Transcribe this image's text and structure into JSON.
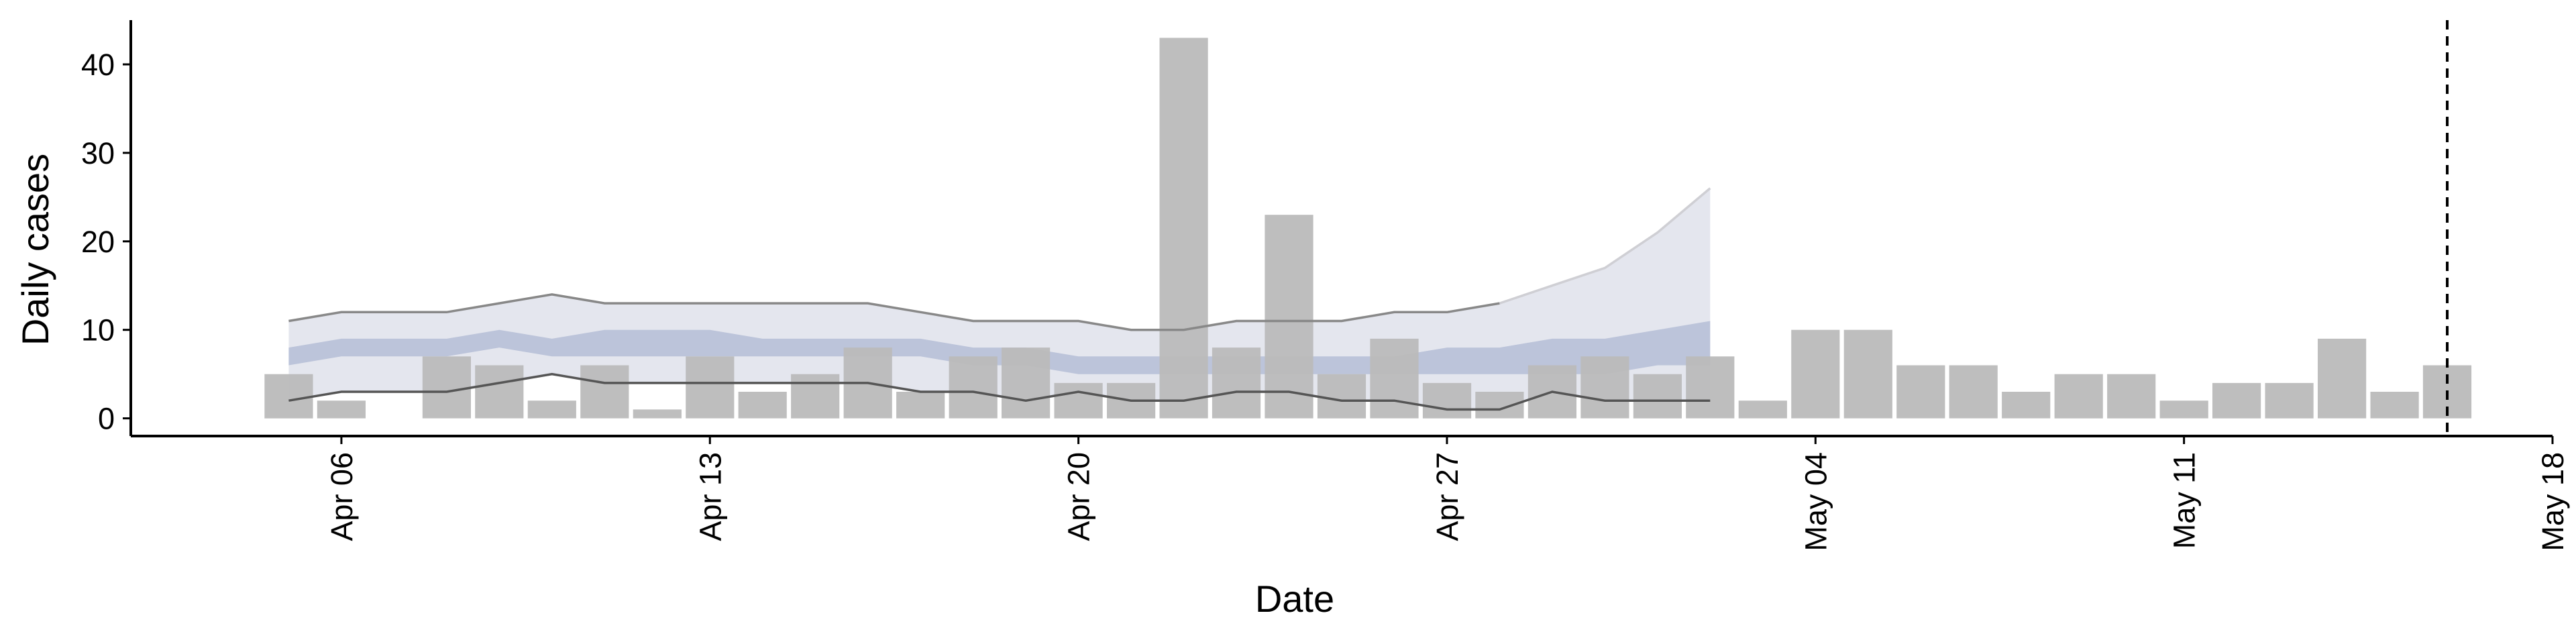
{
  "chart_data": {
    "type": "bar",
    "title": "",
    "xlabel": "Date",
    "ylabel": "Daily cases",
    "ylim": [
      -2,
      45
    ],
    "yticks": [
      0,
      10,
      20,
      30,
      40
    ],
    "xlim": [
      "2020-04-02",
      "2020-05-18"
    ],
    "xticks": [
      {
        "date": "2020-04-06",
        "label": "Apr 06"
      },
      {
        "date": "2020-04-13",
        "label": "Apr 13"
      },
      {
        "date": "2020-04-20",
        "label": "Apr 20"
      },
      {
        "date": "2020-04-27",
        "label": "Apr 27"
      },
      {
        "date": "2020-05-04",
        "label": "May 04"
      },
      {
        "date": "2020-05-11",
        "label": "May 11"
      },
      {
        "date": "2020-05-18",
        "label": "May 18"
      }
    ],
    "grid": false,
    "legend": "none",
    "bars": {
      "color": "#bababa",
      "dates": [
        "2020-04-05",
        "2020-04-06",
        "2020-04-07",
        "2020-04-08",
        "2020-04-09",
        "2020-04-10",
        "2020-04-11",
        "2020-04-12",
        "2020-04-13",
        "2020-04-14",
        "2020-04-15",
        "2020-04-16",
        "2020-04-17",
        "2020-04-18",
        "2020-04-19",
        "2020-04-20",
        "2020-04-21",
        "2020-04-22",
        "2020-04-23",
        "2020-04-24",
        "2020-04-25",
        "2020-04-26",
        "2020-04-27",
        "2020-04-28",
        "2020-04-29",
        "2020-04-30",
        "2020-05-01",
        "2020-05-02",
        "2020-05-03",
        "2020-05-04",
        "2020-05-05",
        "2020-05-06",
        "2020-05-07",
        "2020-05-08",
        "2020-05-09",
        "2020-05-10",
        "2020-05-11",
        "2020-05-12",
        "2020-05-13",
        "2020-05-14",
        "2020-05-15",
        "2020-05-16",
        "2020-05-17"
      ],
      "values": [
        5,
        2,
        0,
        7,
        6,
        2,
        6,
        1,
        7,
        3,
        5,
        8,
        3,
        7,
        8,
        4,
        4,
        43,
        8,
        23,
        5,
        9,
        4,
        3,
        6,
        7,
        5,
        7,
        2,
        10,
        10,
        6,
        6,
        3,
        5,
        5,
        2,
        4,
        4,
        9,
        3,
        6,
        0
      ]
    },
    "forecast": {
      "dates": [
        "2020-04-05",
        "2020-04-06",
        "2020-04-07",
        "2020-04-08",
        "2020-04-09",
        "2020-04-10",
        "2020-04-11",
        "2020-04-12",
        "2020-04-13",
        "2020-04-14",
        "2020-04-15",
        "2020-04-16",
        "2020-04-17",
        "2020-04-18",
        "2020-04-19",
        "2020-04-20",
        "2020-04-21",
        "2020-04-22",
        "2020-04-23",
        "2020-04-24",
        "2020-04-25",
        "2020-04-26",
        "2020-04-27",
        "2020-04-28",
        "2020-04-29",
        "2020-04-30",
        "2020-05-01",
        "2020-05-02"
      ],
      "outer_lower": [
        2,
        3,
        3,
        3,
        4,
        5,
        4,
        4,
        4,
        4,
        4,
        4,
        3,
        3,
        2,
        3,
        2,
        2,
        3,
        3,
        2,
        2,
        1,
        1,
        3,
        2,
        2,
        2
      ],
      "outer_upper": [
        11,
        12,
        12,
        12,
        13,
        14,
        13,
        13,
        13,
        13,
        13,
        13,
        12,
        11,
        11,
        11,
        10,
        10,
        11,
        11,
        11,
        12,
        12,
        13,
        15,
        17,
        21,
        26
      ],
      "inner_lower": [
        6,
        7,
        7,
        7,
        8,
        7,
        7,
        7,
        7,
        7,
        7,
        7,
        7,
        6,
        6,
        5,
        5,
        5,
        5,
        5,
        5,
        5,
        5,
        5,
        5,
        5,
        6,
        6
      ],
      "inner_upper": [
        8,
        9,
        9,
        9,
        10,
        9,
        10,
        10,
        10,
        9,
        9,
        9,
        9,
        8,
        8,
        7,
        7,
        7,
        7,
        7,
        7,
        7,
        8,
        8,
        9,
        9,
        10,
        11
      ],
      "outer_color": "#e4e6ee",
      "inner_color": "#bcc4da",
      "lower_line_color": "#555555",
      "upper_line_color": "#888888"
    },
    "vline": {
      "date": "2020-05-16",
      "style": "dashed",
      "color": "#000000"
    }
  }
}
